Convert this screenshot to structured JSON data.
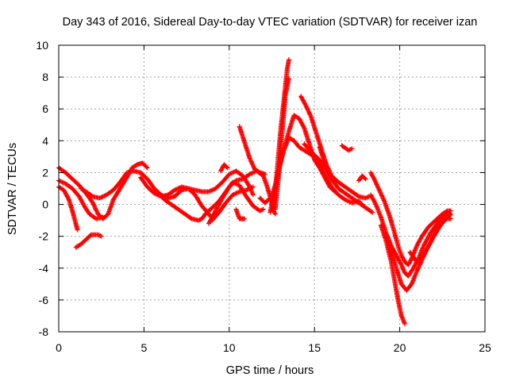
{
  "chart_data": {
    "type": "scatter",
    "title": "Day 343 of 2016, Sidereal Day-to-day VTEC variation (SDTVAR) for receiver izan",
    "xlabel": "GPS time / hours",
    "ylabel": "SDTVAR / TECUs",
    "xlim": [
      0,
      25
    ],
    "ylim": [
      -8,
      10
    ],
    "xticks": [
      0,
      5,
      10,
      15,
      20,
      25
    ],
    "yticks": [
      -8,
      -6,
      -4,
      -2,
      0,
      2,
      4,
      6,
      8,
      10
    ],
    "grid": true,
    "marker": "+",
    "color": "#ff0000",
    "series": [
      {
        "name": "arc-1",
        "points": [
          [
            0.0,
            2.3
          ],
          [
            0.4,
            2.0
          ],
          [
            0.8,
            1.6
          ],
          [
            1.2,
            1.2
          ],
          [
            1.6,
            0.7
          ],
          [
            2.0,
            0.1
          ],
          [
            2.3,
            -0.6
          ],
          [
            2.6,
            -0.9
          ],
          [
            2.9,
            -0.6
          ],
          [
            3.2,
            0.3
          ],
          [
            3.6,
            1.0
          ],
          [
            4.0,
            1.7
          ],
          [
            4.3,
            2.3
          ],
          [
            4.6,
            2.5
          ],
          [
            4.9,
            2.6
          ],
          [
            5.2,
            2.3
          ]
        ]
      },
      {
        "name": "arc-2",
        "points": [
          [
            0.0,
            1.1
          ],
          [
            0.3,
            0.9
          ],
          [
            0.6,
            0.3
          ],
          [
            0.8,
            -0.4
          ],
          [
            1.0,
            -1.2
          ],
          [
            1.1,
            -1.6
          ]
        ]
      },
      {
        "name": "arc-3",
        "points": [
          [
            0.0,
            1.5
          ],
          [
            0.4,
            1.3
          ],
          [
            0.8,
            1.0
          ],
          [
            1.2,
            0.5
          ],
          [
            1.5,
            -0.1
          ],
          [
            1.8,
            -0.6
          ],
          [
            2.2,
            -0.9
          ],
          [
            2.6,
            -0.8
          ]
        ]
      },
      {
        "name": "arc-4",
        "points": [
          [
            1.0,
            -2.7
          ],
          [
            1.3,
            -2.5
          ],
          [
            1.6,
            -2.2
          ],
          [
            1.9,
            -1.9
          ],
          [
            2.3,
            -1.9
          ],
          [
            2.5,
            -2.0
          ]
        ]
      },
      {
        "name": "arc-5",
        "points": [
          [
            1.3,
            1.0
          ],
          [
            1.6,
            0.8
          ],
          [
            2.0,
            0.5
          ],
          [
            2.4,
            0.4
          ],
          [
            2.8,
            0.6
          ],
          [
            3.2,
            0.9
          ],
          [
            3.6,
            1.4
          ],
          [
            4.0,
            2.0
          ],
          [
            4.4,
            2.1
          ],
          [
            4.8,
            2.0
          ],
          [
            5.2,
            1.6
          ],
          [
            5.6,
            1.0
          ],
          [
            6.0,
            0.6
          ],
          [
            6.4,
            0.4
          ],
          [
            6.8,
            0.5
          ],
          [
            7.2,
            0.9
          ],
          [
            7.6,
            1.0
          ],
          [
            8.0,
            0.6
          ],
          [
            8.4,
            -0.1
          ],
          [
            8.8,
            -0.6
          ],
          [
            9.0,
            -0.9
          ]
        ]
      },
      {
        "name": "arc-6",
        "points": [
          [
            4.8,
            1.7
          ],
          [
            5.2,
            1.1
          ],
          [
            5.6,
            0.7
          ],
          [
            6.0,
            0.5
          ],
          [
            6.4,
            0.6
          ],
          [
            6.8,
            0.9
          ],
          [
            7.2,
            1.1
          ],
          [
            7.6,
            1.0
          ],
          [
            8.0,
            0.9
          ],
          [
            8.4,
            0.8
          ],
          [
            8.8,
            0.8
          ],
          [
            9.2,
            1.0
          ],
          [
            9.6,
            1.4
          ],
          [
            10.0,
            1.9
          ],
          [
            10.4,
            2.1
          ],
          [
            10.8,
            1.8
          ],
          [
            11.2,
            1.1
          ],
          [
            11.4,
            0.6
          ]
        ]
      },
      {
        "name": "arc-7",
        "points": [
          [
            5.8,
            0.8
          ],
          [
            6.2,
            0.3
          ],
          [
            6.6,
            0.0
          ],
          [
            7.0,
            -0.3
          ],
          [
            7.4,
            -0.6
          ],
          [
            7.8,
            -0.9
          ],
          [
            8.2,
            -1.0
          ],
          [
            8.4,
            -0.9
          ],
          [
            8.6,
            -0.6
          ],
          [
            9.0,
            -0.2
          ],
          [
            9.4,
            0.2
          ],
          [
            9.8,
            0.8
          ],
          [
            10.2,
            1.4
          ],
          [
            10.6,
            1.2
          ],
          [
            11.0,
            0.5
          ],
          [
            11.4,
            -0.1
          ],
          [
            11.8,
            -0.4
          ],
          [
            12.0,
            -0.3
          ]
        ]
      },
      {
        "name": "arc-8",
        "points": [
          [
            8.8,
            -1.2
          ],
          [
            9.2,
            -0.4
          ],
          [
            9.6,
            0.4
          ],
          [
            10.0,
            1.1
          ],
          [
            10.4,
            1.5
          ],
          [
            10.8,
            1.6
          ],
          [
            11.2,
            1.9
          ],
          [
            11.6,
            2.1
          ],
          [
            12.0,
            1.8
          ],
          [
            12.2,
            1.2
          ],
          [
            12.4,
            0.5
          ],
          [
            12.6,
            -0.4
          ],
          [
            12.7,
            -0.6
          ]
        ]
      },
      {
        "name": "arc-9",
        "points": [
          [
            9.0,
            -1.0
          ],
          [
            9.4,
            -0.5
          ],
          [
            9.8,
            0.1
          ],
          [
            10.2,
            0.6
          ],
          [
            10.6,
            0.8
          ],
          [
            11.0,
            0.9
          ],
          [
            11.4,
            1.1
          ]
        ]
      },
      {
        "name": "arc-10",
        "points": [
          [
            9.5,
            2.1
          ],
          [
            9.7,
            2.5
          ],
          [
            9.9,
            2.3
          ]
        ]
      },
      {
        "name": "arc-11",
        "points": [
          [
            10.4,
            -0.3
          ],
          [
            10.6,
            -0.9
          ],
          [
            10.9,
            -0.9
          ]
        ]
      },
      {
        "name": "arc-12",
        "points": [
          [
            10.6,
            4.9
          ],
          [
            10.9,
            3.9
          ],
          [
            11.2,
            2.9
          ],
          [
            11.5,
            2.2
          ],
          [
            11.8,
            2.0
          ],
          [
            12.1,
            1.9
          ]
        ]
      },
      {
        "name": "arc-13",
        "points": [
          [
            11.8,
            0.4
          ],
          [
            12.1,
            0.1
          ],
          [
            12.5,
            0.5
          ],
          [
            12.8,
            1.6
          ],
          [
            13.1,
            3.0
          ],
          [
            13.5,
            4.6
          ],
          [
            13.8,
            5.6
          ],
          [
            14.1,
            5.4
          ],
          [
            14.4,
            4.8
          ],
          [
            14.7,
            3.8
          ],
          [
            15.0,
            2.8
          ],
          [
            15.3,
            2.3
          ],
          [
            15.6,
            1.7
          ],
          [
            15.9,
            1.1
          ],
          [
            16.2,
            0.8
          ]
        ]
      },
      {
        "name": "arc-14",
        "points": [
          [
            12.4,
            -0.5
          ],
          [
            12.6,
            0.6
          ],
          [
            12.9,
            2.2
          ],
          [
            13.2,
            3.4
          ],
          [
            13.5,
            4.2
          ],
          [
            13.8,
            4.0
          ],
          [
            14.1,
            3.6
          ],
          [
            14.4,
            3.4
          ],
          [
            14.7,
            3.2
          ],
          [
            15.0,
            3.0
          ],
          [
            15.3,
            2.6
          ],
          [
            15.6,
            1.9
          ],
          [
            16.0,
            1.1
          ],
          [
            16.4,
            0.6
          ],
          [
            16.8,
            0.3
          ],
          [
            17.2,
            0.1
          ],
          [
            17.6,
            0.2
          ],
          [
            17.8,
            0.0
          ]
        ]
      },
      {
        "name": "arc-15",
        "points": [
          [
            12.6,
            0.0
          ],
          [
            12.8,
            2.0
          ],
          [
            13.0,
            4.5
          ],
          [
            13.2,
            6.5
          ],
          [
            13.4,
            8.5
          ],
          [
            13.5,
            9.1
          ]
        ]
      },
      {
        "name": "arc-16",
        "points": [
          [
            12.7,
            -0.3
          ],
          [
            12.9,
            1.8
          ],
          [
            13.1,
            4.5
          ],
          [
            13.3,
            6.9
          ],
          [
            13.5,
            7.9
          ]
        ]
      },
      {
        "name": "arc-17",
        "points": [
          [
            14.2,
            6.8
          ],
          [
            14.5,
            6.2
          ],
          [
            14.8,
            5.5
          ],
          [
            15.1,
            4.5
          ],
          [
            15.4,
            3.5
          ],
          [
            15.7,
            2.5
          ],
          [
            16.0,
            1.8
          ],
          [
            16.4,
            1.4
          ],
          [
            16.8,
            1.1
          ],
          [
            17.2,
            0.8
          ],
          [
            17.6,
            0.5
          ],
          [
            18.0,
            0.4
          ],
          [
            18.2,
            0.5
          ]
        ]
      },
      {
        "name": "arc-18",
        "points": [
          [
            14.4,
            3.8
          ],
          [
            14.8,
            3.3
          ],
          [
            15.2,
            2.9
          ],
          [
            15.6,
            2.4
          ],
          [
            16.0,
            1.6
          ],
          [
            16.4,
            1.0
          ],
          [
            16.8,
            0.7
          ],
          [
            17.2,
            0.4
          ],
          [
            17.6,
            0.1
          ],
          [
            18.0,
            -0.2
          ],
          [
            18.4,
            -0.5
          ]
        ]
      },
      {
        "name": "arc-19",
        "points": [
          [
            15.3,
            3.6
          ],
          [
            15.6,
            2.6
          ],
          [
            15.8,
            2.1
          ]
        ]
      },
      {
        "name": "arc-20",
        "points": [
          [
            16.6,
            3.7
          ],
          [
            17.0,
            3.4
          ],
          [
            17.2,
            3.5
          ]
        ]
      },
      {
        "name": "arc-21",
        "points": [
          [
            17.6,
            1.5
          ],
          [
            17.8,
            1.8
          ],
          [
            18.0,
            1.6
          ]
        ]
      },
      {
        "name": "arc-22",
        "points": [
          [
            18.3,
            2.0
          ],
          [
            18.5,
            1.6
          ],
          [
            18.8,
            0.9
          ],
          [
            19.1,
            0.2
          ],
          [
            19.4,
            -0.7
          ],
          [
            19.7,
            -1.8
          ],
          [
            19.9,
            -2.6
          ],
          [
            20.1,
            -3.2
          ],
          [
            20.3,
            -3.6
          ],
          [
            20.5,
            -3.8
          ],
          [
            20.7,
            -3.4
          ],
          [
            21.0,
            -2.6
          ],
          [
            21.3,
            -2.0
          ],
          [
            21.7,
            -1.4
          ],
          [
            22.1,
            -1.0
          ],
          [
            22.5,
            -0.6
          ],
          [
            22.8,
            -0.4
          ],
          [
            23.0,
            -0.4
          ]
        ]
      },
      {
        "name": "arc-23",
        "points": [
          [
            18.3,
            0.6
          ],
          [
            18.6,
            0.0
          ],
          [
            18.9,
            -0.8
          ],
          [
            19.2,
            -1.8
          ],
          [
            19.5,
            -2.6
          ],
          [
            19.8,
            -3.2
          ],
          [
            20.1,
            -3.8
          ],
          [
            20.3,
            -4.3
          ],
          [
            20.5,
            -4.5
          ],
          [
            20.8,
            -4.0
          ],
          [
            21.1,
            -3.4
          ],
          [
            21.4,
            -2.6
          ],
          [
            21.8,
            -1.8
          ],
          [
            22.2,
            -1.2
          ],
          [
            22.6,
            -0.7
          ],
          [
            22.9,
            -0.5
          ]
        ]
      },
      {
        "name": "arc-24",
        "points": [
          [
            18.9,
            -1.3
          ],
          [
            19.2,
            -2.3
          ],
          [
            19.5,
            -3.6
          ],
          [
            19.7,
            -4.8
          ],
          [
            19.9,
            -6.0
          ],
          [
            20.1,
            -7.0
          ],
          [
            20.3,
            -7.5
          ]
        ]
      },
      {
        "name": "arc-25",
        "points": [
          [
            19.2,
            -1.8
          ],
          [
            19.5,
            -2.8
          ],
          [
            19.8,
            -4.0
          ],
          [
            20.1,
            -5.0
          ],
          [
            20.4,
            -5.4
          ],
          [
            20.7,
            -5.0
          ],
          [
            21.0,
            -4.2
          ],
          [
            21.3,
            -3.5
          ],
          [
            21.6,
            -2.8
          ],
          [
            22.0,
            -2.0
          ],
          [
            22.4,
            -1.3
          ],
          [
            22.8,
            -0.8
          ],
          [
            23.0,
            -0.6
          ]
        ]
      },
      {
        "name": "arc-26",
        "points": [
          [
            20.6,
            -3.0
          ],
          [
            21.0,
            -3.6
          ],
          [
            21.4,
            -3.2
          ],
          [
            21.8,
            -2.4
          ],
          [
            22.2,
            -1.4
          ],
          [
            22.6,
            -0.9
          ],
          [
            23.0,
            -0.9
          ]
        ]
      }
    ]
  }
}
